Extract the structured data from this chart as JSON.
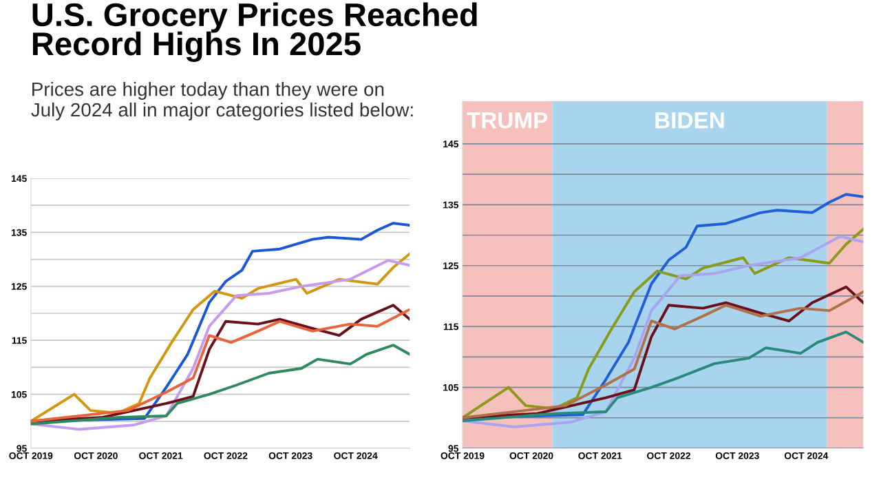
{
  "chart_data": [
    {
      "type": "line",
      "title": "U.S. Grocery Prices Reached\nRecord Highs In 2025",
      "subtitle": "Prices are higher today than they were on\nJuly 2024 all in major categories listed below:",
      "xlim": [
        "2019-10",
        "2025-08"
      ],
      "ylim": [
        95,
        145
      ],
      "xticks": [
        {
          "value": "2019-10",
          "label": "OCT 2019"
        },
        {
          "value": "2020-10",
          "label": "OCT 2020"
        },
        {
          "value": "2021-10",
          "label": "OCT 2021"
        },
        {
          "value": "2022-10",
          "label": "OCT 2022"
        },
        {
          "value": "2023-10",
          "label": "OCT 2023"
        },
        {
          "value": "2024-10",
          "label": "OCT 2024"
        }
      ],
      "yticks": [
        95,
        {
          "value": 100,
          "label": null
        },
        105,
        {
          "value": 110,
          "label": null
        },
        115,
        {
          "value": 120,
          "label": null
        },
        125,
        {
          "value": 130,
          "label": null
        },
        135,
        {
          "value": 140,
          "label": null
        },
        145
      ],
      "grid": "y",
      "series": [
        {
          "color": "#1a56d8",
          "x": [
            "2019-10",
            "2021-07",
            "2021-11",
            "2022-03",
            "2022-07",
            "2022-10",
            "2023-01",
            "2023-03",
            "2023-08",
            "2024-02",
            "2024-05",
            "2024-11",
            "2025-02",
            "2025-05",
            "2025-08"
          ],
          "values": [
            100,
            100.5,
            106.3,
            112.4,
            122,
            125.9,
            128,
            131.5,
            131.9,
            133.7,
            134.1,
            133.7,
            135.4,
            136.7,
            136.3
          ]
        },
        {
          "color": "#d4950f",
          "x": [
            "2019-10",
            "2020-06",
            "2020-09",
            "2021-02",
            "2021-06",
            "2021-08",
            "2021-12",
            "2022-04",
            "2022-08",
            "2023-01",
            "2023-04",
            "2023-11",
            "2024-01",
            "2024-07",
            "2025-02",
            "2025-05",
            "2025-08"
          ],
          "values": [
            100,
            105,
            102,
            101.5,
            103.3,
            108,
            114.6,
            120.7,
            124.1,
            122.8,
            124.6,
            126.3,
            123.7,
            126.3,
            125.4,
            128.5,
            131
          ]
        },
        {
          "color": "#c79af0",
          "x": [
            "2019-10",
            "2020-07",
            "2021-05",
            "2021-11",
            "2022-04",
            "2022-07",
            "2022-12",
            "2023-06",
            "2023-12",
            "2024-09",
            "2025-04",
            "2025-08"
          ],
          "values": [
            99.5,
            98.5,
            99.3,
            101,
            109.8,
            117.6,
            123.3,
            123.7,
            125,
            126.3,
            129.8,
            128.9
          ]
        },
        {
          "color": "#6b0f1a",
          "x": [
            "2019-10",
            "2020-11",
            "2021-11",
            "2022-04",
            "2022-07",
            "2022-10",
            "2023-04",
            "2023-08",
            "2024-02",
            "2024-07",
            "2024-11",
            "2025-05",
            "2025-08"
          ],
          "values": [
            100,
            100.7,
            103.3,
            104.6,
            113.3,
            118.5,
            118,
            118.9,
            117.2,
            115.9,
            118.9,
            121.5,
            118.9
          ]
        },
        {
          "color": "#e8643a",
          "x": [
            "2019-10",
            "2021-04",
            "2021-11",
            "2022-04",
            "2022-07",
            "2022-11",
            "2023-04",
            "2023-08",
            "2024-02",
            "2024-09",
            "2025-02",
            "2025-08"
          ],
          "values": [
            100,
            102,
            105.4,
            108,
            115.9,
            114.6,
            116.7,
            118.5,
            116.7,
            118,
            117.6,
            120.7
          ]
        },
        {
          "color": "#2e8a5e",
          "x": [
            "2019-10",
            "2021-02",
            "2021-11",
            "2022-01",
            "2022-07",
            "2022-12",
            "2023-06",
            "2023-12",
            "2024-03",
            "2024-09",
            "2024-12",
            "2025-05",
            "2025-08"
          ],
          "values": [
            99.5,
            100.7,
            101,
            103.3,
            105,
            106.7,
            108.9,
            109.8,
            111.5,
            110.6,
            112.4,
            114.1,
            112.4
          ]
        }
      ]
    },
    {
      "type": "line",
      "xlim": [
        "2019-10",
        "2025-08"
      ],
      "ylim": [
        95,
        152
      ],
      "xticks": [
        {
          "value": "2019-10",
          "label": "OCT 2019"
        },
        {
          "value": "2020-10",
          "label": "OCT 2020"
        },
        {
          "value": "2021-10",
          "label": "OCT 2021"
        },
        {
          "value": "2022-10",
          "label": "OCT 2022"
        },
        {
          "value": "2023-10",
          "label": "OCT 2023"
        },
        {
          "value": "2024-10",
          "label": "OCT 2024"
        }
      ],
      "yticks": [
        95,
        {
          "value": 100,
          "label": null
        },
        105,
        {
          "value": 110,
          "label": null
        },
        115,
        {
          "value": 120,
          "label": null
        },
        125,
        {
          "value": 130,
          "label": null
        },
        135,
        {
          "value": 140,
          "label": null
        },
        145
      ],
      "grid": "y",
      "bands": [
        {
          "axis": "x",
          "from": "2019-10",
          "to": "2021-01-20",
          "label": "TRUMP",
          "color": "#f6c1bd"
        },
        {
          "axis": "x",
          "from": "2021-01-20",
          "to": "2025-01-20",
          "label": "BIDEN",
          "color": "#a9d4ee"
        },
        {
          "axis": "x",
          "from": "2025-01-20",
          "to": "2025-08",
          "color": "#f6c1bd"
        }
      ],
      "series": [
        {
          "color": "#1f5fd6",
          "x": [
            "2019-10",
            "2021-07",
            "2021-11",
            "2022-03",
            "2022-07",
            "2022-10",
            "2023-01",
            "2023-03",
            "2023-08",
            "2024-02",
            "2024-05",
            "2024-11",
            "2025-02",
            "2025-05",
            "2025-08"
          ],
          "values": [
            100,
            100.5,
            106.3,
            112.4,
            122,
            125.9,
            128,
            131.5,
            131.9,
            133.7,
            134.1,
            133.7,
            135.4,
            136.7,
            136.3
          ]
        },
        {
          "color": "#8a9a1a",
          "x": [
            "2019-10",
            "2020-06",
            "2020-09",
            "2021-02",
            "2021-06",
            "2021-08",
            "2021-12",
            "2022-04",
            "2022-08",
            "2023-01",
            "2023-04",
            "2023-11",
            "2024-01",
            "2024-07",
            "2025-02",
            "2025-05",
            "2025-08"
          ],
          "values": [
            100,
            105,
            102,
            101.5,
            103.3,
            108,
            114.6,
            120.7,
            124.1,
            122.8,
            124.6,
            126.3,
            123.7,
            126.3,
            125.4,
            128.5,
            131
          ]
        },
        {
          "color": "#a9a3f0",
          "x": [
            "2019-10",
            "2020-07",
            "2021-05",
            "2021-11",
            "2022-04",
            "2022-07",
            "2022-12",
            "2023-06",
            "2023-12",
            "2024-09",
            "2025-04",
            "2025-08"
          ],
          "values": [
            99.5,
            98.5,
            99.3,
            101,
            109.8,
            117.6,
            123.3,
            123.7,
            125,
            126.3,
            129.8,
            128.9
          ]
        },
        {
          "color": "#6b0f1a",
          "x": [
            "2019-10",
            "2020-11",
            "2021-11",
            "2022-04",
            "2022-07",
            "2022-10",
            "2023-04",
            "2023-08",
            "2024-02",
            "2024-07",
            "2024-11",
            "2025-05",
            "2025-08"
          ],
          "values": [
            100,
            100.7,
            103.3,
            104.6,
            113.3,
            118.5,
            118,
            118.9,
            117.2,
            115.9,
            118.9,
            121.5,
            118.9
          ]
        },
        {
          "color": "#b0704a",
          "x": [
            "2019-10",
            "2021-04",
            "2021-11",
            "2022-04",
            "2022-07",
            "2022-11",
            "2023-04",
            "2023-08",
            "2024-02",
            "2024-09",
            "2025-02",
            "2025-08"
          ],
          "values": [
            100,
            102,
            105.4,
            108,
            115.9,
            114.6,
            116.7,
            118.5,
            116.7,
            118,
            117.6,
            120.7
          ]
        },
        {
          "color": "#2a8a7a",
          "x": [
            "2019-10",
            "2021-02",
            "2021-11",
            "2022-01",
            "2022-07",
            "2022-12",
            "2023-06",
            "2023-12",
            "2024-03",
            "2024-09",
            "2024-12",
            "2025-05",
            "2025-08"
          ],
          "values": [
            99.5,
            100.7,
            101,
            103.3,
            105,
            106.7,
            108.9,
            109.8,
            111.5,
            110.6,
            112.4,
            114.1,
            112.4
          ]
        }
      ]
    }
  ]
}
